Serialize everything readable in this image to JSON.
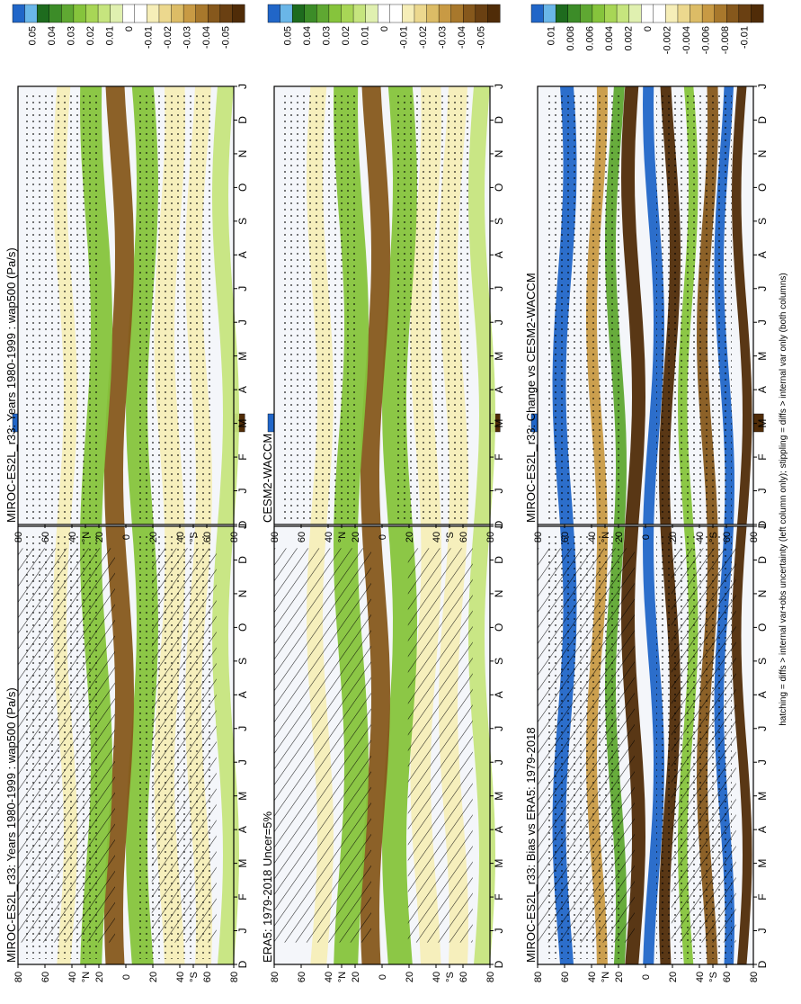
{
  "footer": "hatching = diffs > internal var+obs uncertainty (left column only); stippling = diffs > internal var only (both columns)",
  "month_labels": [
    "D",
    "J",
    "F",
    "M",
    "A",
    "M",
    "J",
    "J",
    "A",
    "S",
    "O",
    "N",
    "D",
    "J"
  ],
  "lat_labels": [
    "80",
    "60",
    "40",
    "°N",
    "20",
    "0",
    "20",
    "40",
    "°S",
    "60",
    "80"
  ],
  "colors": {
    "palette_top": [
      "#2166c8",
      "#6ab6e8",
      "#1e6b1e",
      "#3c8c28",
      "#5fa832",
      "#86c43c",
      "#a8d656",
      "#c6e57e",
      "#e0f0b0",
      "#ffffff",
      "#ffffff",
      "#f6eeb8",
      "#ecd88e",
      "#dcbc66",
      "#c89a44",
      "#a8782c",
      "#86581c",
      "#6a4012",
      "#502c08"
    ],
    "grid": "#000000",
    "band_green": "#a8d656",
    "band_brown": "#c89a44",
    "band_blue": "#2a86d2"
  },
  "chart_data": [
    {
      "panel": "top-left",
      "type": "heatmap",
      "title": "MIROC-ES2L_r33: Years 1980-1999 : wap500 (Pa/s)",
      "variable": "wap500",
      "units": "Pa/s",
      "colorbar": [
        "0.05",
        "0.04",
        "0.03",
        "0.02",
        "0.01",
        "0",
        "-0.01",
        "-0.02",
        "-0.03",
        "-0.04",
        "-0.05"
      ],
      "bands": [
        {
          "lat0": -80,
          "lat1": -68,
          "value": 0.01
        },
        {
          "lat0": -60,
          "lat1": -48,
          "value": -0.01
        },
        {
          "lat0": -40,
          "lat1": -25,
          "value": -0.01
        },
        {
          "lat0": -20,
          "lat1": -4,
          "value": 0.02
        },
        {
          "lat0": -2,
          "lat1": 12,
          "value": -0.04
        },
        {
          "lat0": 14,
          "lat1": 30,
          "value": 0.02
        },
        {
          "lat0": 40,
          "lat1": 50,
          "value": -0.01
        }
      ],
      "overlay": "hatch+stipple"
    },
    {
      "panel": "top-right",
      "type": "heatmap",
      "title": "MIROC-ES2L_r33: Years 1980-1999 : wap500 (Pa/s)",
      "variable": "wap500",
      "units": "Pa/s",
      "colorbar": [
        "0.05",
        "0.04",
        "0.03",
        "0.02",
        "0.01",
        "0",
        "-0.01",
        "-0.02",
        "-0.03",
        "-0.04",
        "-0.05"
      ],
      "bands": [
        {
          "lat0": -80,
          "lat1": -68,
          "value": 0.01
        },
        {
          "lat0": -60,
          "lat1": -48,
          "value": -0.01
        },
        {
          "lat0": -40,
          "lat1": -25,
          "value": -0.01
        },
        {
          "lat0": -20,
          "lat1": -4,
          "value": 0.02
        },
        {
          "lat0": -2,
          "lat1": 12,
          "value": -0.04
        },
        {
          "lat0": 14,
          "lat1": 30,
          "value": 0.02
        },
        {
          "lat0": 40,
          "lat1": 50,
          "value": -0.01
        }
      ],
      "overlay": "stipple"
    },
    {
      "panel": "middle-left",
      "type": "heatmap",
      "title": "ERA5: 1979-2018 Uncer=5%",
      "colorbar": [
        "0.05",
        "0.04",
        "0.03",
        "0.02",
        "0.01",
        "0",
        "-0.01",
        "-0.02",
        "-0.03",
        "-0.04",
        "-0.05"
      ],
      "bands": [
        {
          "lat0": -80,
          "lat1": -68,
          "value": 0.01
        },
        {
          "lat0": -60,
          "lat1": -46,
          "value": -0.01
        },
        {
          "lat0": -40,
          "lat1": -25,
          "value": -0.01
        },
        {
          "lat0": -22,
          "lat1": -4,
          "value": 0.02
        },
        {
          "lat0": -2,
          "lat1": 12,
          "value": -0.04
        },
        {
          "lat0": 14,
          "lat1": 32,
          "value": 0.02
        },
        {
          "lat0": 40,
          "lat1": 52,
          "value": -0.01
        }
      ],
      "overlay": "hatch"
    },
    {
      "panel": "middle-right",
      "type": "heatmap",
      "title": "CESM2-WACCM",
      "colorbar": [
        "0.05",
        "0.04",
        "0.03",
        "0.02",
        "0.01",
        "0",
        "-0.01",
        "-0.02",
        "-0.03",
        "-0.04",
        "-0.05"
      ],
      "bands": [
        {
          "lat0": -80,
          "lat1": -68,
          "value": 0.01
        },
        {
          "lat0": -60,
          "lat1": -46,
          "value": -0.01
        },
        {
          "lat0": -40,
          "lat1": -25,
          "value": -0.01
        },
        {
          "lat0": -22,
          "lat1": -4,
          "value": 0.02
        },
        {
          "lat0": -2,
          "lat1": 12,
          "value": -0.04
        },
        {
          "lat0": 14,
          "lat1": 32,
          "value": 0.02
        },
        {
          "lat0": 40,
          "lat1": 52,
          "value": -0.01
        }
      ],
      "overlay": "stipple"
    },
    {
      "panel": "bottom-left",
      "type": "heatmap",
      "title": "MIROC-ES2L_r33: Bias vs ERA5: 1979-2018",
      "colorbar": [
        "0.01",
        "0.008",
        "0.006",
        "0.004",
        "0.002",
        "0",
        "-0.002",
        "-0.004",
        "-0.006",
        "-0.008",
        "-0.01"
      ],
      "bands": [
        {
          "lat0": -75,
          "lat1": -68,
          "value": -0.01
        },
        {
          "lat0": -62,
          "lat1": -55,
          "value": 0.01
        },
        {
          "lat0": -50,
          "lat1": -42,
          "value": -0.008
        },
        {
          "lat0": -35,
          "lat1": -28,
          "value": 0.004
        },
        {
          "lat0": -22,
          "lat1": -14,
          "value": -0.01
        },
        {
          "lat0": -10,
          "lat1": -2,
          "value": 0.01
        },
        {
          "lat0": 4,
          "lat1": 14,
          "value": -0.01
        },
        {
          "lat0": 18,
          "lat1": 26,
          "value": 0.006
        },
        {
          "lat0": 32,
          "lat1": 40,
          "value": -0.006
        },
        {
          "lat0": 55,
          "lat1": 65,
          "value": 0.01
        }
      ],
      "overlay": "hatch+stipple"
    },
    {
      "panel": "bottom-right",
      "type": "heatmap",
      "title": "MIROC-ES2L_r33: Change vs CESM2-WACCM",
      "colorbar": [
        "0.01",
        "0.008",
        "0.006",
        "0.004",
        "0.002",
        "0",
        "-0.002",
        "-0.004",
        "-0.006",
        "-0.008",
        "-0.01"
      ],
      "bands": [
        {
          "lat0": -75,
          "lat1": -68,
          "value": -0.01
        },
        {
          "lat0": -62,
          "lat1": -55,
          "value": 0.01
        },
        {
          "lat0": -50,
          "lat1": -42,
          "value": -0.008
        },
        {
          "lat0": -35,
          "lat1": -28,
          "value": 0.004
        },
        {
          "lat0": -22,
          "lat1": -14,
          "value": -0.01
        },
        {
          "lat0": -10,
          "lat1": -2,
          "value": 0.01
        },
        {
          "lat0": 4,
          "lat1": 14,
          "value": -0.01
        },
        {
          "lat0": 18,
          "lat1": 26,
          "value": 0.006
        },
        {
          "lat0": 32,
          "lat1": 40,
          "value": -0.006
        },
        {
          "lat0": 55,
          "lat1": 65,
          "value": 0.01
        }
      ],
      "overlay": "stipple"
    }
  ]
}
